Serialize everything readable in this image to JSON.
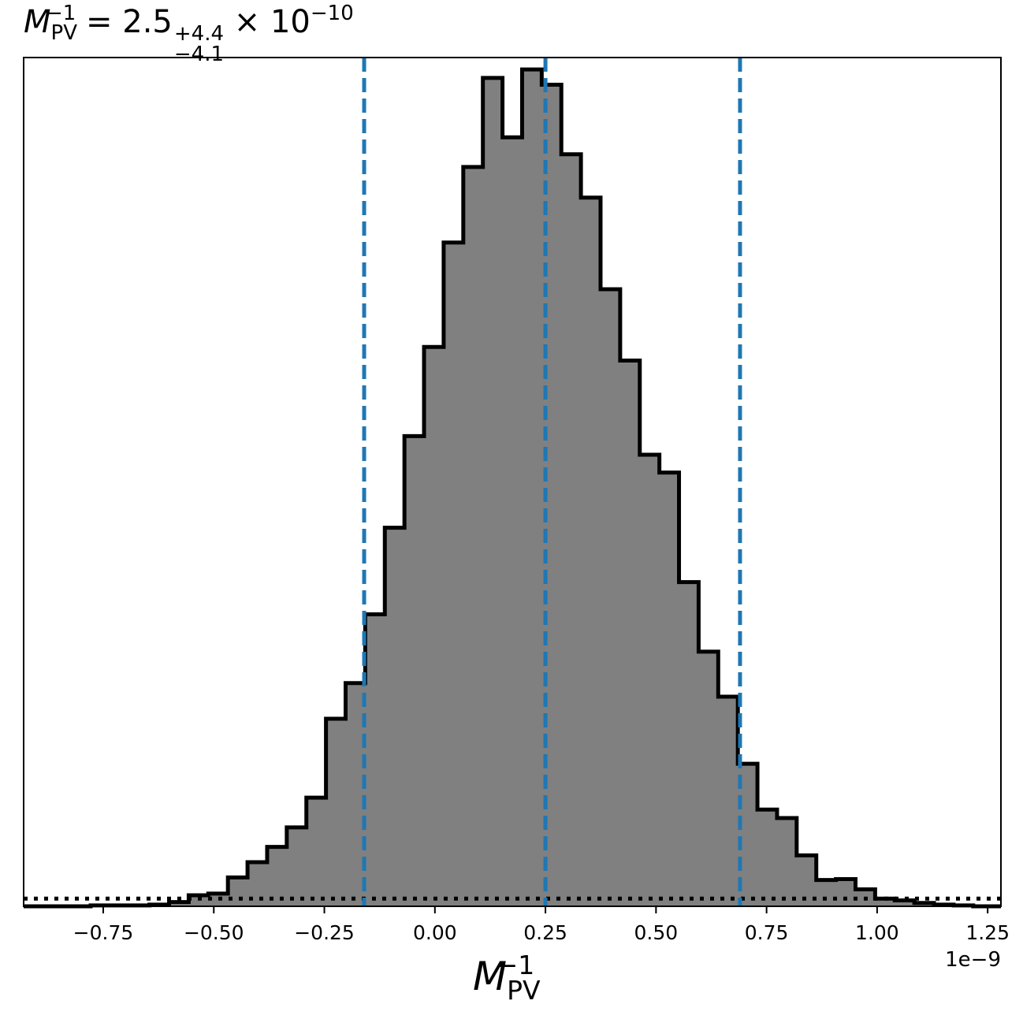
{
  "title": {
    "symbol": "M",
    "sub": "PV",
    "sup": "−1",
    "value": " = 2.5",
    "err_plus": "+4.4",
    "err_minus": "−4.1",
    "scale": "× 10",
    "scale_exp": "−10"
  },
  "x_axis": {
    "symbol": "M",
    "sub": "PV",
    "sup": "−1",
    "offset_text": "1e−9"
  },
  "colors": {
    "fill": "#808080",
    "outline": "#000000",
    "quantile_lines": "#1f77b4"
  },
  "chart_data": {
    "type": "histogram",
    "x_unit_scale": "1e-9",
    "xlim": [
      -0.93,
      1.28
    ],
    "ylim": [
      0,
      1.0
    ],
    "x_ticks": [
      -0.75,
      -0.5,
      -0.25,
      0.0,
      0.25,
      0.5,
      0.75,
      1.0,
      1.25
    ],
    "x_tick_labels": [
      "−0.75",
      "−0.50",
      "−0.25",
      "0.00",
      "0.25",
      "0.50",
      "0.75",
      "1.00",
      "1.25"
    ],
    "y_ticks_shown": false,
    "bin_width": 0.04435,
    "bin_edges_start": -0.7785,
    "bin_heights": [
      0.001,
      0.001,
      0.001,
      0.002,
      0.005,
      0.013,
      0.015,
      0.034,
      0.052,
      0.07,
      0.093,
      0.128,
      0.221,
      0.263,
      0.344,
      0.446,
      0.554,
      0.659,
      0.782,
      0.871,
      0.976,
      0.906,
      0.986,
      0.968,
      0.886,
      0.835,
      0.727,
      0.643,
      0.532,
      0.511,
      0.382,
      0.3,
      0.247,
      0.168,
      0.114,
      0.104,
      0.06,
      0.031,
      0.032,
      0.02,
      0.009,
      0.007,
      0.004,
      0.002,
      0.001
    ],
    "quantiles": {
      "q16": -0.16,
      "median": 0.25,
      "q84": 0.69
    },
    "reference_level": 0.009,
    "series": [
      {
        "values_key": "bin_heights"
      }
    ]
  }
}
